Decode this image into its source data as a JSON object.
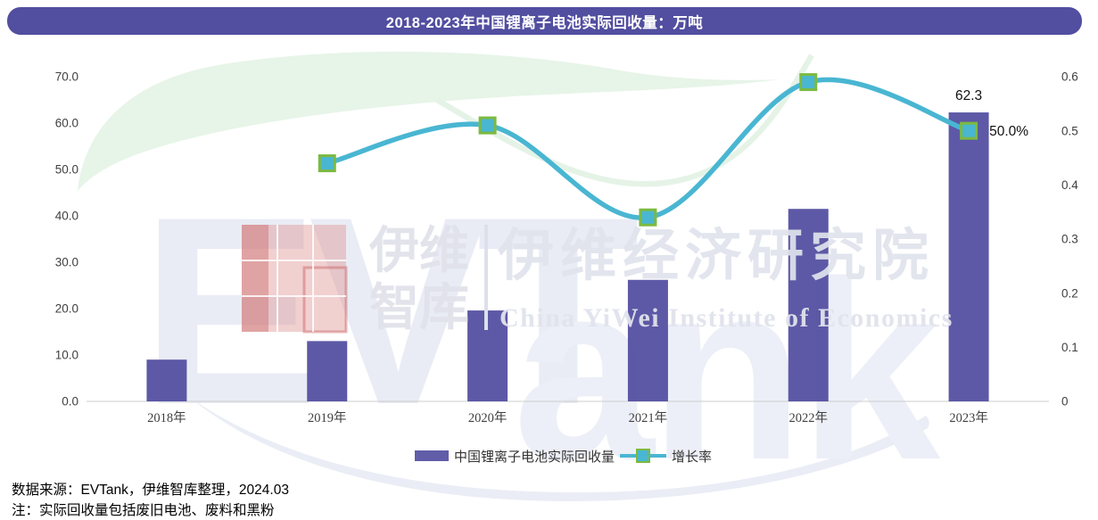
{
  "header": {
    "title": "2018-2023年中国锂离子电池实际回收量：万吨"
  },
  "chart_data": {
    "type": "bar+line combo",
    "title": "2018-2023年中国锂离子电池实际回收量：万吨",
    "unit": "万吨",
    "categories": [
      "2018年",
      "2019年",
      "2020年",
      "2021年",
      "2022年",
      "2023年"
    ],
    "series": [
      {
        "name": "中国锂离子电池实际回收量",
        "type": "bar",
        "axis": "left",
        "values": [
          9.0,
          13.0,
          19.6,
          26.2,
          41.5,
          62.3
        ]
      },
      {
        "name": "增长率",
        "type": "line",
        "axis": "right",
        "values": [
          null,
          0.44,
          0.51,
          0.34,
          0.59,
          0.5
        ]
      }
    ],
    "left_axis": {
      "min": 0,
      "max": 70,
      "step": 10,
      "tick_labels": [
        "0.0",
        "10.0",
        "20.0",
        "30.0",
        "40.0",
        "50.0",
        "60.0",
        "70.0"
      ]
    },
    "right_axis": {
      "min": 0,
      "max": 0.6,
      "step": 0.1,
      "tick_labels": [
        "0",
        "0.1",
        "0.2",
        "0.3",
        "0.4",
        "0.5",
        "0.6"
      ]
    },
    "annotations": {
      "bar_value_label": "62.3",
      "rate_value_label": "50.0%"
    },
    "grid": false,
    "legend_position": "bottom",
    "colors": {
      "bar": "#4F4B9E",
      "line": "#49B6D2",
      "marker_fill": "#49B6D2",
      "marker_border": "#7CBA40",
      "banner": "#524EA0",
      "axis_text": "#404040",
      "label_text": "#111111"
    }
  },
  "legend": {
    "bar_label": "中国锂离子电池实际回收量",
    "line_label": "增长率"
  },
  "footnotes": {
    "source": "数据来源：EVTank，伊维智库整理，2024.03",
    "note": "注：实际回收量包括废旧电池、废料和黑粉"
  },
  "watermark": {
    "evt": "EVT",
    "ank": "ank",
    "cn_line1": "伊维",
    "cn_line2": "智库",
    "cn_full": "伊维经济研究院",
    "en_full": "China YiWei Institute of Economics"
  }
}
